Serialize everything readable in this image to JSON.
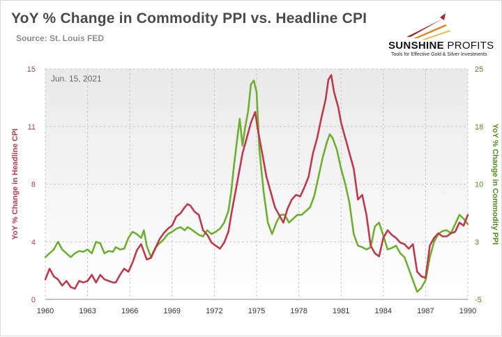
{
  "header": {
    "title": "YoY % Change in Commodity PPI vs. Headline CPI",
    "source": "Source: St. Louis FED"
  },
  "logo": {
    "name_bold": "SUNSHINE",
    "name_light": " PROFITS",
    "tagline": "Tools for Effective Gold & Silver Investments"
  },
  "chart_data": {
    "type": "line",
    "annotation": "Jun. 15, 2021",
    "xlabel": "",
    "ylabel_left": "YoY % Change in Headline CPI",
    "ylabel_right": "YoY % Change in Commodity PPI",
    "xlim": [
      1960,
      1990
    ],
    "ylim_left": [
      0,
      15
    ],
    "ylim_right": [
      -5,
      25
    ],
    "x_ticks": [
      "1960",
      "1963",
      "1966",
      "1969",
      "1972",
      "1975",
      "1978",
      "1981",
      "1984",
      "1987",
      "1990"
    ],
    "x_tick_values": [
      1960,
      1963,
      1966,
      1969,
      1972,
      1975,
      1978,
      1981,
      1984,
      1987,
      1990
    ],
    "left_ticks": [
      "0",
      "4",
      "8",
      "11",
      "15"
    ],
    "left_tick_values": [
      0,
      3.75,
      7.5,
      11.25,
      15
    ],
    "right_ticks": [
      "-5",
      "3",
      "10",
      "18",
      "25"
    ],
    "right_tick_values": [
      -5,
      2.5,
      10,
      17.5,
      25
    ],
    "grid": true,
    "colors": {
      "cpi": "#c0394b",
      "ppi": "#6db02c",
      "grid": "#c8c8c8"
    },
    "series": [
      {
        "axis": "left",
        "x": [
          1960.0,
          1960.3,
          1960.6,
          1960.9,
          1961.2,
          1961.5,
          1961.8,
          1962.1,
          1962.4,
          1962.7,
          1963.0,
          1963.3,
          1963.6,
          1963.9,
          1964.2,
          1964.5,
          1964.8,
          1965.0,
          1965.3,
          1965.6,
          1965.9,
          1966.2,
          1966.5,
          1966.8,
          1967.0,
          1967.2,
          1967.5,
          1967.8,
          1968.1,
          1968.4,
          1968.7,
          1969.0,
          1969.3,
          1969.6,
          1969.9,
          1970.1,
          1970.3,
          1970.6,
          1970.9,
          1971.2,
          1971.5,
          1971.8,
          1972.1,
          1972.4,
          1972.7,
          1973.0,
          1973.2,
          1973.5,
          1973.8,
          1974.0,
          1974.3,
          1974.6,
          1974.9,
          1975.1,
          1975.4,
          1975.7,
          1976.0,
          1976.3,
          1976.6,
          1976.9,
          1977.2,
          1977.5,
          1977.8,
          1978.1,
          1978.4,
          1978.7,
          1979.0,
          1979.3,
          1979.6,
          1979.9,
          1980.1,
          1980.3,
          1980.5,
          1980.8,
          1981.0,
          1981.3,
          1981.6,
          1981.9,
          1982.2,
          1982.5,
          1982.8,
          1983.1,
          1983.4,
          1983.7,
          1984.0,
          1984.3,
          1984.6,
          1984.9,
          1985.2,
          1985.5,
          1985.8,
          1986.1,
          1986.4,
          1986.7,
          1987.0,
          1987.3,
          1987.6,
          1987.9,
          1988.2,
          1988.5,
          1988.8,
          1989.1,
          1989.4,
          1989.7,
          1990.0
        ],
        "values": [
          1.3,
          2.0,
          1.5,
          1.3,
          0.9,
          1.2,
          0.8,
          0.7,
          1.2,
          1.1,
          1.2,
          1.6,
          1.1,
          1.6,
          1.3,
          1.2,
          1.1,
          1.1,
          1.6,
          2.0,
          1.8,
          2.4,
          3.2,
          3.6,
          3.1,
          2.6,
          2.7,
          3.3,
          3.9,
          4.3,
          4.6,
          4.8,
          5.4,
          5.6,
          6.0,
          6.2,
          6.1,
          5.7,
          5.5,
          4.5,
          4.2,
          3.7,
          3.5,
          3.3,
          3.7,
          4.4,
          5.5,
          7.0,
          8.5,
          9.5,
          10.5,
          11.5,
          12.2,
          11.0,
          9.5,
          8.0,
          7.0,
          6.0,
          5.5,
          5.0,
          5.9,
          6.5,
          6.8,
          6.7,
          7.3,
          8.0,
          9.5,
          10.5,
          11.8,
          13.0,
          14.3,
          14.6,
          13.5,
          12.5,
          11.5,
          10.5,
          9.5,
          8.5,
          6.5,
          6.8,
          5.5,
          3.5,
          3.0,
          2.8,
          4.0,
          4.5,
          4.2,
          4.0,
          3.7,
          3.6,
          3.3,
          3.6,
          1.8,
          1.5,
          1.4,
          3.5,
          4.0,
          4.3,
          4.1,
          4.1,
          4.3,
          4.4,
          5.0,
          4.8,
          5.5
        ]
      },
      {
        "axis": "right",
        "x": [
          1960.0,
          1960.3,
          1960.6,
          1960.9,
          1961.2,
          1961.5,
          1961.8,
          1962.1,
          1962.4,
          1962.7,
          1963.0,
          1963.3,
          1963.6,
          1963.9,
          1964.2,
          1964.5,
          1964.8,
          1965.0,
          1965.3,
          1965.6,
          1965.9,
          1966.2,
          1966.5,
          1966.8,
          1967.0,
          1967.2,
          1967.5,
          1967.8,
          1968.1,
          1968.4,
          1968.7,
          1969.0,
          1969.3,
          1969.6,
          1969.9,
          1970.1,
          1970.3,
          1970.6,
          1970.9,
          1971.2,
          1971.5,
          1971.8,
          1972.1,
          1972.4,
          1972.7,
          1973.0,
          1973.2,
          1973.4,
          1973.6,
          1973.8,
          1974.0,
          1974.2,
          1974.4,
          1974.6,
          1974.8,
          1975.0,
          1975.2,
          1975.5,
          1975.8,
          1976.1,
          1976.4,
          1976.7,
          1977.0,
          1977.3,
          1977.6,
          1977.9,
          1978.2,
          1978.5,
          1978.8,
          1979.1,
          1979.4,
          1979.7,
          1980.0,
          1980.2,
          1980.4,
          1980.7,
          1981.0,
          1981.3,
          1981.6,
          1981.9,
          1982.2,
          1982.5,
          1982.8,
          1983.1,
          1983.4,
          1983.7,
          1984.0,
          1984.3,
          1984.6,
          1984.9,
          1985.2,
          1985.5,
          1985.8,
          1986.1,
          1986.4,
          1986.7,
          1987.0,
          1987.3,
          1987.6,
          1987.9,
          1988.2,
          1988.5,
          1988.8,
          1989.1,
          1989.4,
          1989.7,
          1990.0
        ],
        "values": [
          0.5,
          1.0,
          1.5,
          2.5,
          1.5,
          1.0,
          0.5,
          1.0,
          1.3,
          1.2,
          1.5,
          1.0,
          2.5,
          2.3,
          1.0,
          1.3,
          1.2,
          1.8,
          1.5,
          1.6,
          3.0,
          3.8,
          3.5,
          3.0,
          4.0,
          2.0,
          0.5,
          1.7,
          2.3,
          2.8,
          3.5,
          3.8,
          4.2,
          4.4,
          4.0,
          4.4,
          4.2,
          3.8,
          3.4,
          3.2,
          4.0,
          3.5,
          3.8,
          4.2,
          5.0,
          6.5,
          9.0,
          12.5,
          15.5,
          18.5,
          15.0,
          17.5,
          19.5,
          23.0,
          23.5,
          22.0,
          14.5,
          9.0,
          5.0,
          3.5,
          5.0,
          6.0,
          6.0,
          5.0,
          5.5,
          6.0,
          6.0,
          6.5,
          7.0,
          8.5,
          11.0,
          13.5,
          15.5,
          16.5,
          16.0,
          14.5,
          12.0,
          10.0,
          7.5,
          3.5,
          2.0,
          1.8,
          1.5,
          1.8,
          4.5,
          5.0,
          3.3,
          1.5,
          1.7,
          2.0,
          1.0,
          0.5,
          -1.0,
          -2.5,
          -4.0,
          -3.5,
          -2.5,
          0.5,
          2.5,
          3.5,
          3.9,
          4.0,
          3.6,
          4.8,
          6.0,
          5.5,
          4.8
        ]
      }
    ]
  }
}
